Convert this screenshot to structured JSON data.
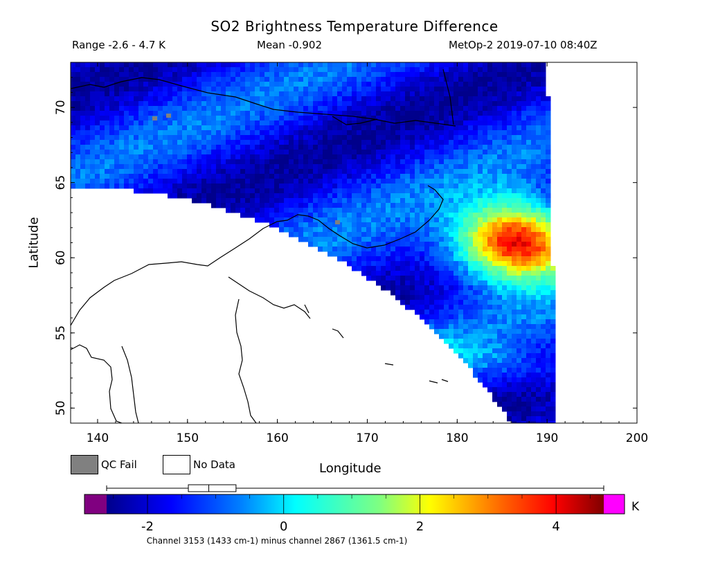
{
  "chart_data": {
    "type": "heatmap",
    "title": "SO2 Brightness Temperature Difference",
    "range_label": "Range -2.6 - 4.7 K",
    "mean_label": "Mean -0.902",
    "satellite_label": "MetOp-2 2019-07-10 08:40Z",
    "xlabel": "Longitude",
    "ylabel": "Latitude",
    "xlim": [
      137,
      200
    ],
    "ylim": [
      49,
      73
    ],
    "x_ticks": [
      "140",
      "150",
      "160",
      "170",
      "180",
      "190",
      "200"
    ],
    "y_ticks": [
      "50",
      "55",
      "60",
      "65",
      "70"
    ],
    "x_tick_values": [
      140,
      150,
      160,
      170,
      180,
      190,
      200
    ],
    "y_tick_values": [
      50,
      55,
      60,
      65,
      70
    ],
    "colorbar": {
      "min": -2.6,
      "max": 4.7,
      "ticks": [
        "-2",
        "0",
        "2",
        "4"
      ],
      "tick_values": [
        -2,
        0,
        2,
        4
      ],
      "units": "K",
      "footnote": "Channel 3153 (1433 cm-1) minus channel 2867 (1361.5 cm-1)",
      "box_plot": {
        "min": -2.6,
        "q1": -1.4,
        "median": -1.1,
        "q3": -0.7,
        "max": 4.7
      },
      "under_color": "#800080",
      "over_color": "#ff00ff"
    },
    "legend": [
      {
        "label": "QC Fail",
        "color": "#808080"
      },
      {
        "label": "No Data",
        "color": "#ffffff"
      }
    ],
    "plume": {
      "center_lon": 186.5,
      "center_lat": 61.2,
      "peak_value": 4.7
    }
  }
}
